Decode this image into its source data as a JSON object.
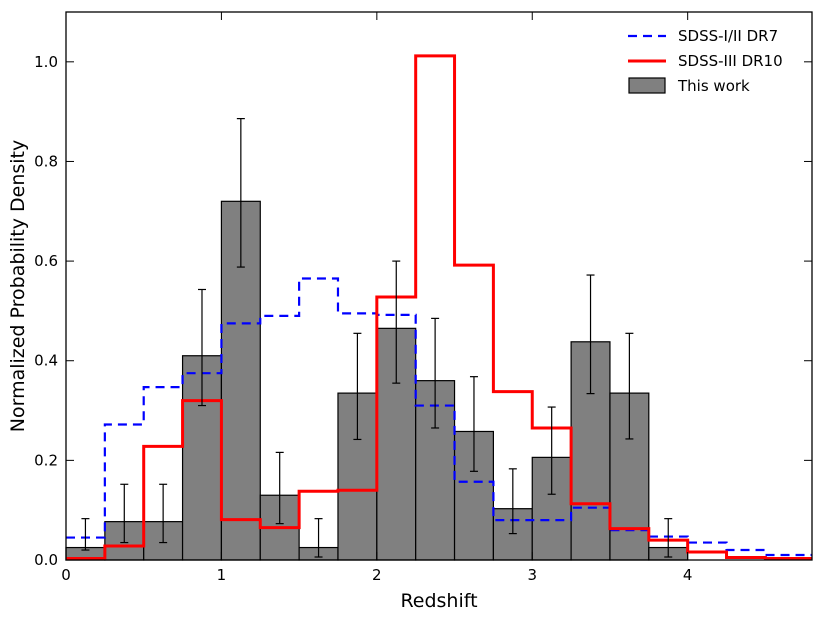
{
  "chart_data": {
    "type": "histogram",
    "xlabel": "Redshift",
    "ylabel": "Normalized Probability Density",
    "xlim": [
      0,
      4.8
    ],
    "ylim": [
      0,
      1.1
    ],
    "x_ticks": [
      0,
      1,
      2,
      3,
      4
    ],
    "x_tick_labels": [
      "0",
      "1",
      "2",
      "3",
      "4"
    ],
    "y_ticks": [
      0,
      0.2,
      0.4,
      0.6,
      0.8,
      1.0
    ],
    "y_tick_labels": [
      "0.0",
      "0.2",
      "0.4",
      "0.6",
      "0.8",
      "1.0"
    ],
    "grid": false,
    "legend_position": "top-right",
    "this_work": {
      "name": "This work",
      "color": "#808080",
      "bin_edges": [
        0,
        0.25,
        0.5,
        0.75,
        1.0,
        1.25,
        1.5,
        1.75,
        2.0,
        2.25,
        2.5,
        2.75,
        3.0,
        3.25,
        3.5,
        3.75,
        4.0
      ],
      "values": [
        0.025,
        0.077,
        0.077,
        0.41,
        0.72,
        0.13,
        0.025,
        0.335,
        0.465,
        0.36,
        0.258,
        0.103,
        0.206,
        0.438,
        0.335,
        0.025
      ],
      "err_low": [
        0.02,
        0.035,
        0.035,
        0.31,
        0.588,
        0.073,
        0.006,
        0.242,
        0.355,
        0.265,
        0.178,
        0.053,
        0.132,
        0.334,
        0.243,
        0.006
      ],
      "err_high": [
        0.083,
        0.152,
        0.152,
        0.543,
        0.886,
        0.216,
        0.083,
        0.455,
        0.6,
        0.485,
        0.368,
        0.183,
        0.307,
        0.572,
        0.455,
        0.083
      ]
    },
    "series": [
      {
        "name": "SDSS-I/II DR7",
        "color": "#0000ff",
        "style": "dashed",
        "bin_edges": [
          0,
          0.25,
          0.5,
          0.75,
          1.0,
          1.25,
          1.5,
          1.75,
          2.0,
          2.25,
          2.5,
          2.75,
          3.0,
          3.25,
          3.5,
          3.75,
          4.0,
          4.25,
          4.5,
          4.8
        ],
        "values": [
          0.045,
          0.272,
          0.347,
          0.375,
          0.475,
          0.49,
          0.565,
          0.495,
          0.492,
          0.31,
          0.157,
          0.08,
          0.08,
          0.105,
          0.06,
          0.047,
          0.035,
          0.02,
          0.01
        ]
      },
      {
        "name": "SDSS-III DR10",
        "color": "#ff0000",
        "style": "solid",
        "bin_edges": [
          0,
          0.25,
          0.5,
          0.75,
          1.0,
          1.25,
          1.5,
          1.75,
          2.0,
          2.25,
          2.5,
          2.75,
          3.0,
          3.25,
          3.5,
          3.75,
          4.0,
          4.25,
          4.5,
          4.8
        ],
        "values": [
          0.003,
          0.028,
          0.228,
          0.32,
          0.081,
          0.065,
          0.138,
          0.14,
          0.528,
          1.012,
          0.592,
          0.338,
          0.265,
          0.113,
          0.063,
          0.04,
          0.016,
          0.005,
          0.003
        ]
      }
    ],
    "legend_entries": [
      "SDSS-I/II DR7",
      "SDSS-III DR10",
      "This work"
    ]
  }
}
